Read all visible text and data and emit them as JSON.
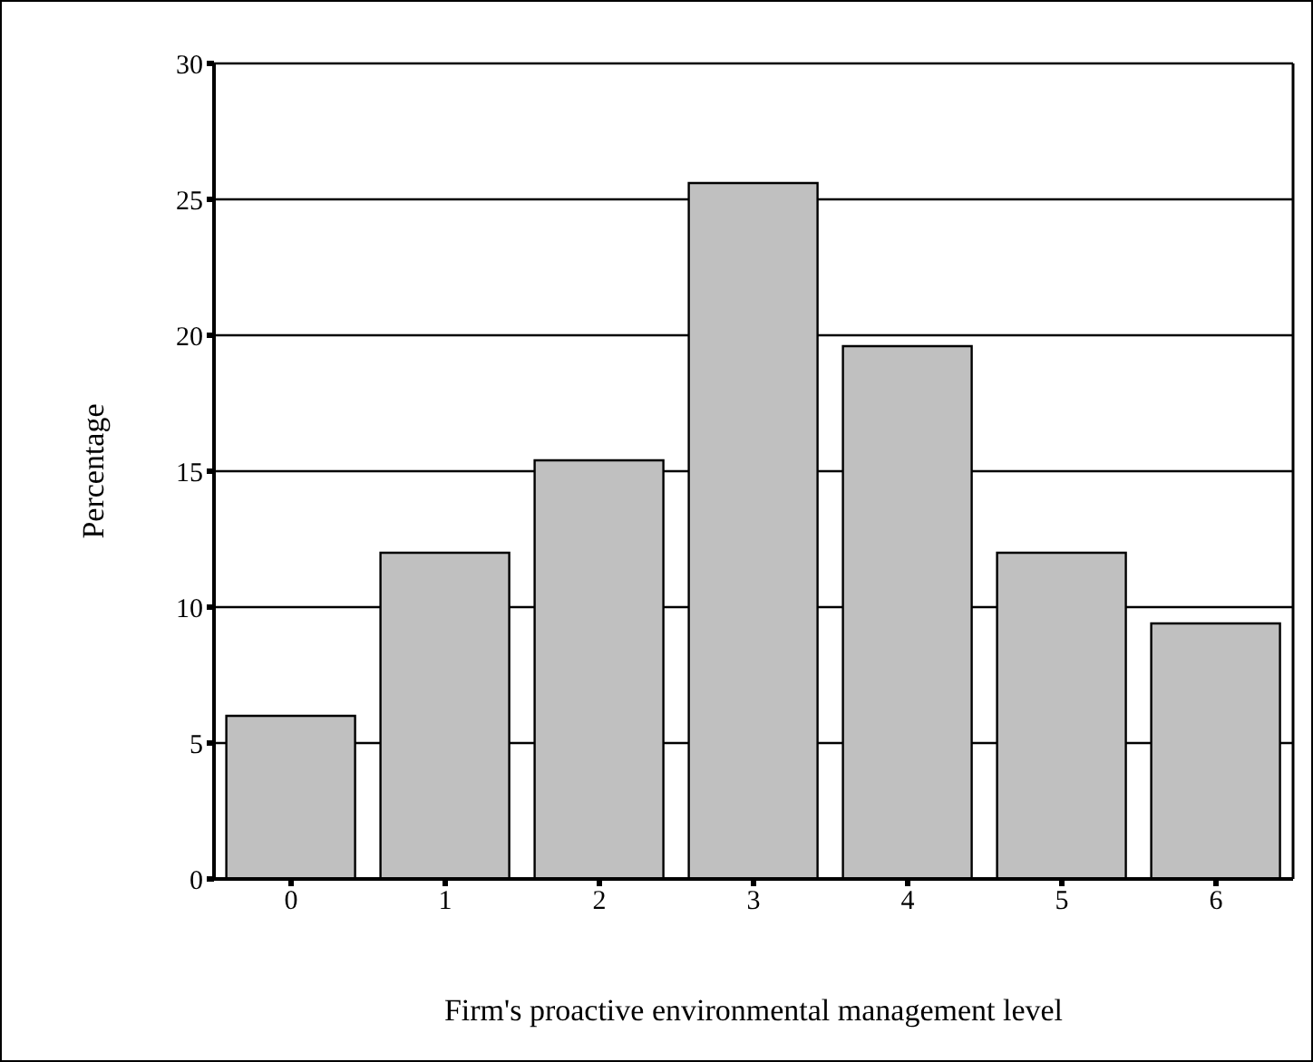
{
  "chart_data": {
    "type": "bar",
    "xlabel": "Firm's proactive environmental management level",
    "ylabel": "Percentage",
    "categories": [
      "0",
      "1",
      "2",
      "3",
      "4",
      "5",
      "6"
    ],
    "values": [
      6.0,
      12.0,
      15.4,
      25.6,
      19.6,
      12.0,
      9.4
    ],
    "color": "#c0c0c0",
    "ylim": [
      0,
      30
    ],
    "yticks": [
      0,
      5,
      10,
      15,
      20,
      25,
      30
    ],
    "grid": "y"
  }
}
